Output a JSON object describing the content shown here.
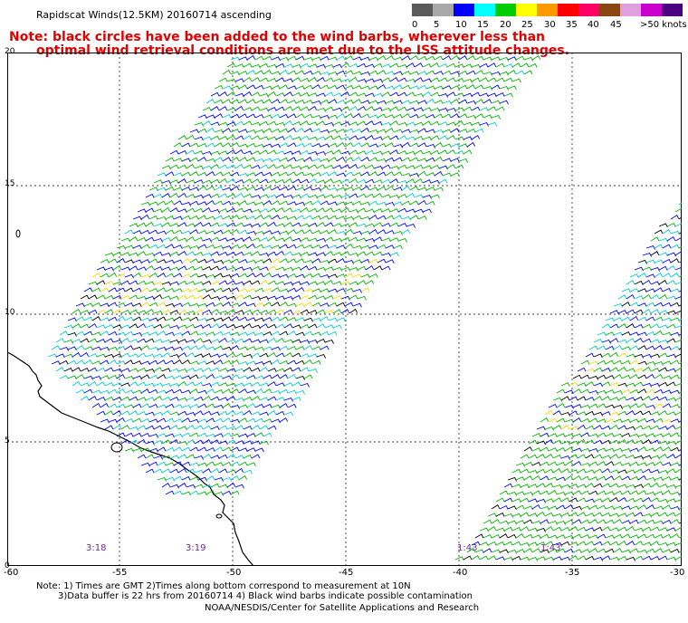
{
  "title": "Rapidscat Winds(12.5KM) 20160714 ascending",
  "note": {
    "line1": "Note: black circles have been added to the wind barbs, wherever less than",
    "line2": "optimal wind retrieval conditions are met due to the ISS attitude changes."
  },
  "legend": {
    "colors": [
      "#5a5a5a",
      "#a8a8a8",
      "#0000ff",
      "#00ffff",
      "#00cc00",
      "#ffff00",
      "#ff9900",
      "#ff0000",
      "#ff0066",
      "#8b4513",
      "#e0a0e0",
      "#cc00cc",
      "#4b0082"
    ],
    "ticks": [
      "0",
      "5",
      "10",
      "15",
      "20",
      "25",
      "30",
      "35",
      "40",
      "45",
      ">50 knots"
    ]
  },
  "lat_labels": [
    "20",
    "15",
    "10",
    "5",
    "0"
  ],
  "lon_labels": [
    "-60",
    "-55",
    "-50",
    "-45",
    "-40",
    "-35",
    "-30"
  ],
  "time_labels": [
    "3:18",
    "3:19",
    "1:43",
    "1:43"
  ],
  "footnote": {
    "line1": "Note: 1) Times are GMT 2)Times along bottom correspond to measurement at 10N",
    "line2": "3)Data buffer is 22 hrs from 20160714 4) Black wind barbs indicate possible contamination"
  },
  "credit": "NOAA/NESDIS/Center for Satellite Applications and Research",
  "map": {
    "lon_range": [
      -60,
      -30
    ],
    "lat_range": [
      0,
      20
    ],
    "grid": true
  }
}
